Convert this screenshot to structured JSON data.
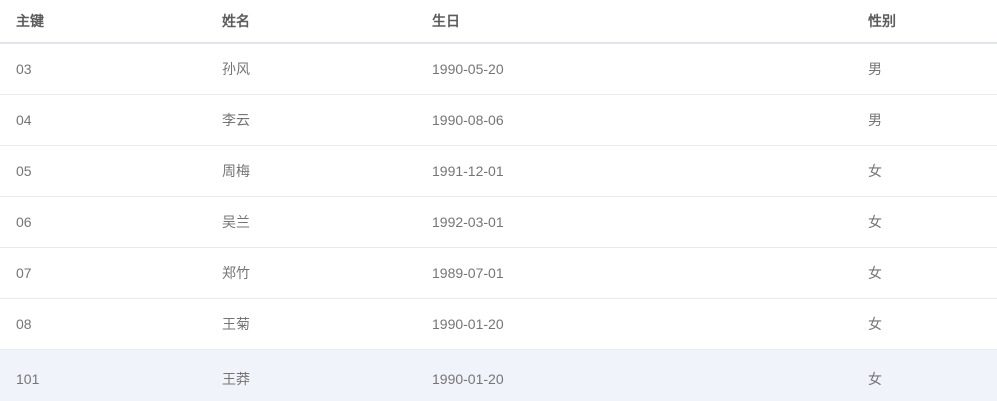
{
  "table": {
    "columns": [
      {
        "key": "primary-key",
        "label": "主键"
      },
      {
        "key": "name",
        "label": "姓名"
      },
      {
        "key": "birthday",
        "label": "生日"
      },
      {
        "key": "gender",
        "label": "性别"
      }
    ],
    "rows": [
      [
        "03",
        "孙风",
        "1990-05-20",
        "男"
      ],
      [
        "04",
        "李云",
        "1990-08-06",
        "男"
      ],
      [
        "05",
        "周梅",
        "1991-12-01",
        "女"
      ],
      [
        "06",
        "吴兰",
        "1992-03-01",
        "女"
      ],
      [
        "07",
        "郑竹",
        "1989-07-01",
        "女"
      ],
      [
        "08",
        "王菊",
        "1990-01-20",
        "女"
      ],
      [
        "101",
        "王莽",
        "1990-01-20",
        "女"
      ]
    ],
    "highlighted_row_primary_key": "101",
    "colors": {
      "header_text": "#5c5c5c",
      "body_text": "#757575",
      "header_divider": "#e1e4ea",
      "row_divider": "#eaeaea",
      "highlight_row_bg": "#f0f3fa"
    }
  }
}
